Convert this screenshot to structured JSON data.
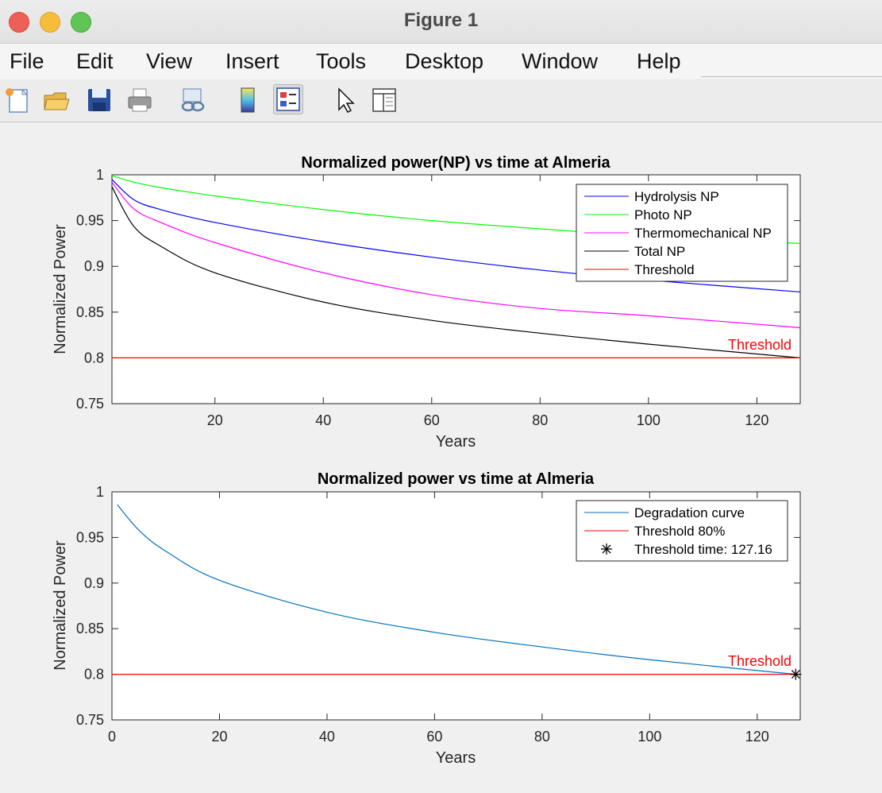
{
  "window": {
    "title": "Figure 1"
  },
  "menu": [
    "File",
    "Edit",
    "View",
    "Insert",
    "Tools",
    "Desktop",
    "Window",
    "Help"
  ],
  "toolbar_icons": [
    "new-figure-icon",
    "open-file-icon",
    "save-icon",
    "print-icon",
    "link-plot-icon",
    "colorbar-icon",
    "legend-icon",
    "edit-plot-pointer-icon",
    "property-inspector-icon"
  ],
  "colors": {
    "hydrolysis": "#0000ff",
    "photo": "#00ff00",
    "thermo": "#ff00ff",
    "total": "#000000",
    "threshold": "#ff0000",
    "degradation": "#0072bd"
  },
  "chart_data": [
    {
      "type": "line",
      "title": "Normalized power(NP) vs time at Almeria",
      "xlabel": "Years",
      "ylabel": "Normalized Power",
      "xlim": [
        1,
        128
      ],
      "ylim": [
        0.75,
        1
      ],
      "xticks": [
        "20",
        "40",
        "60",
        "80",
        "100",
        "120"
      ],
      "yticks": [
        "0.75",
        "0.8",
        "0.85",
        "0.9",
        "0.95",
        "1"
      ],
      "series": [
        {
          "name": "Hydrolysis NP",
          "x": [
            1,
            5,
            10,
            20,
            40,
            60,
            80,
            100,
            128
          ],
          "values": [
            0.995,
            0.973,
            0.962,
            0.948,
            0.927,
            0.91,
            0.896,
            0.885,
            0.872
          ]
        },
        {
          "name": "Photo NP",
          "x": [
            1,
            5,
            10,
            20,
            40,
            60,
            80,
            100,
            128
          ],
          "values": [
            0.999,
            0.992,
            0.986,
            0.977,
            0.962,
            0.95,
            0.941,
            0.933,
            0.925
          ]
        },
        {
          "name": "Thermomechanical NP",
          "x": [
            1,
            5,
            10,
            20,
            40,
            60,
            80,
            100,
            128
          ],
          "values": [
            0.992,
            0.963,
            0.948,
            0.926,
            0.893,
            0.869,
            0.854,
            0.846,
            0.833
          ]
        },
        {
          "name": "Total NP",
          "x": [
            1,
            5,
            10,
            20,
            40,
            60,
            80,
            100,
            128
          ],
          "values": [
            0.987,
            0.944,
            0.922,
            0.893,
            0.861,
            0.841,
            0.827,
            0.815,
            0.8
          ]
        },
        {
          "name": "Threshold",
          "x": [
            1,
            128
          ],
          "values": [
            0.8,
            0.8
          ]
        }
      ],
      "annotation": "Threshold"
    },
    {
      "type": "line",
      "title": "Normalized power vs time at Almeria",
      "xlabel": "Years",
      "ylabel": "Normalized Power",
      "xlim": [
        0,
        128
      ],
      "ylim": [
        0.75,
        1
      ],
      "xticks": [
        "0",
        "20",
        "40",
        "60",
        "80",
        "100",
        "120"
      ],
      "yticks": [
        "0.75",
        "0.8",
        "0.85",
        "0.9",
        "0.95",
        "1"
      ],
      "series": [
        {
          "name": "Degradation curve",
          "x": [
            1,
            5,
            10,
            20,
            40,
            60,
            80,
            100,
            127.16
          ],
          "values": [
            0.986,
            0.958,
            0.935,
            0.903,
            0.868,
            0.846,
            0.83,
            0.816,
            0.8
          ]
        },
        {
          "name": "Threshold 80%",
          "x": [
            0,
            128
          ],
          "values": [
            0.8,
            0.8
          ]
        },
        {
          "name": "Threshold time: 127.16",
          "x": [
            127.16
          ],
          "values": [
            0.8
          ],
          "marker": "asterisk"
        }
      ],
      "annotation": "Threshold"
    }
  ]
}
